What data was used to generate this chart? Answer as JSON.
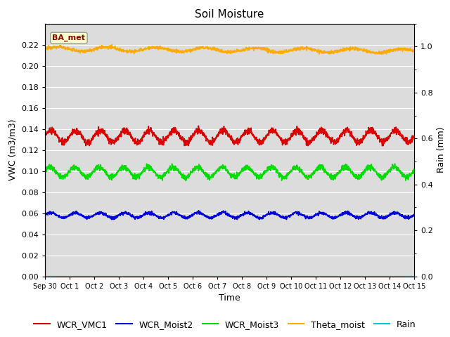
{
  "title": "Soil Moisture",
  "xlabel": "Time",
  "ylabel_left": "VWC (m3/m3)",
  "ylabel_right": "Rain (mm)",
  "ylim_left": [
    0.0,
    0.24
  ],
  "ylim_right": [
    0.0,
    1.1
  ],
  "yticks_left": [
    0.0,
    0.02,
    0.04,
    0.06,
    0.08,
    0.1,
    0.12,
    0.14,
    0.16,
    0.18,
    0.2,
    0.22
  ],
  "yticks_right": [
    0.0,
    0.2,
    0.4,
    0.6,
    0.8,
    1.0
  ],
  "annotation_text": "BA_met",
  "colors": {
    "WCR_VMC1": "#dd0000",
    "WCR_Moist2": "#0000dd",
    "WCR_Moist3": "#00dd00",
    "Theta_moist": "#ffaa00",
    "Rain": "#00cccc"
  },
  "background_color": "#dcdcdc",
  "fig_background": "#ffffff",
  "grid_color": "#ffffff",
  "title_fontsize": 11,
  "label_fontsize": 9,
  "tick_fontsize": 8,
  "legend_fontsize": 9
}
